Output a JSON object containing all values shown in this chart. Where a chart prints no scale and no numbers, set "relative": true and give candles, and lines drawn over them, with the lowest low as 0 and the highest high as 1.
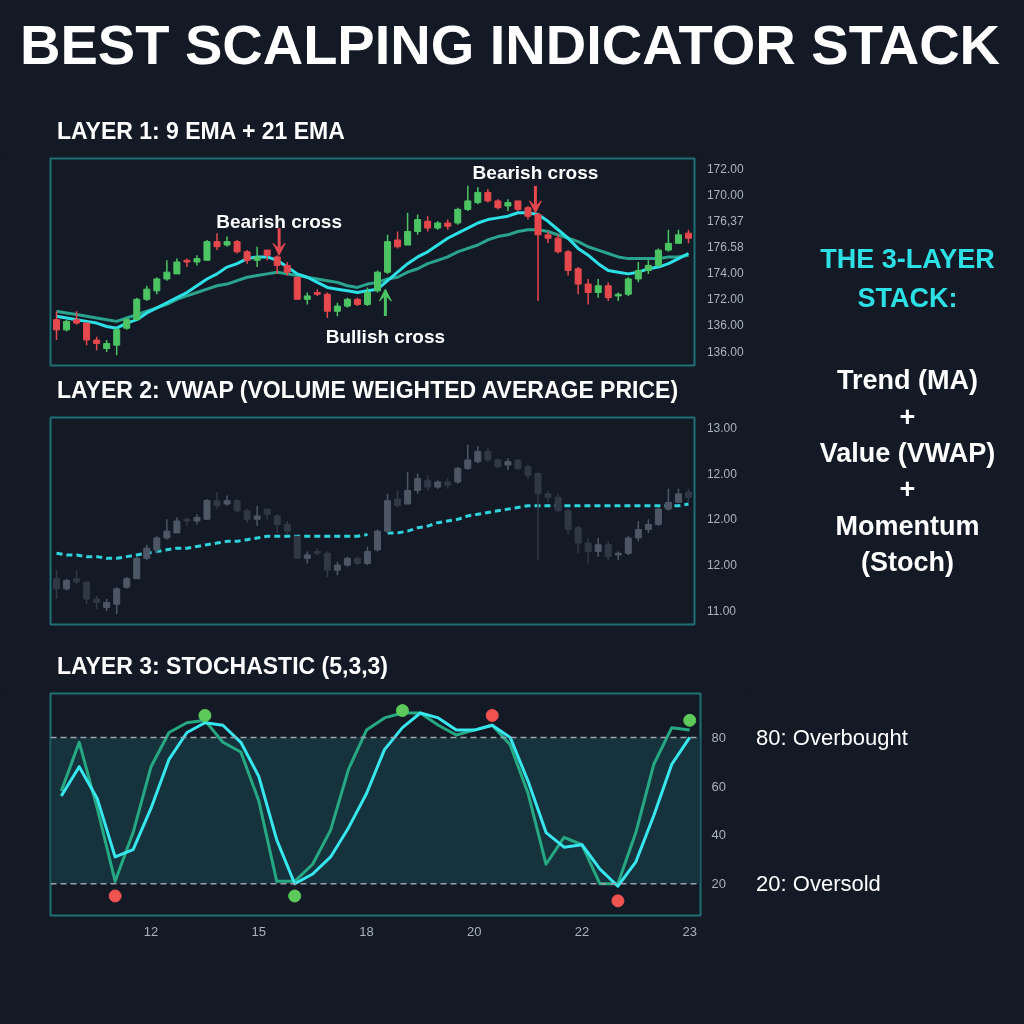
{
  "chart_data": [
    {
      "type": "candlestick",
      "title": "BEST SCALPING INDICATOR STACK",
      "subtitle": "LAYER 1: 9 EMA + 21 EMA",
      "relative": true,
      "categories": [
        null,
        null,
        null,
        null,
        null,
        null,
        null,
        null,
        null,
        null,
        null,
        null,
        null,
        null,
        null,
        null,
        null,
        null,
        null,
        null,
        null,
        null,
        null,
        null,
        null,
        null,
        null,
        null,
        null,
        null,
        null,
        null,
        null,
        null,
        null,
        null,
        null,
        null,
        null,
        null,
        null,
        null,
        null,
        null,
        null,
        null,
        null,
        null,
        null,
        null,
        null,
        null,
        null,
        null,
        null,
        null,
        null,
        null,
        null,
        null,
        null,
        null,
        null,
        null
      ],
      "ohlc": [
        [
          0.21,
          0.26,
          0.09,
          0.15
        ],
        [
          0.15,
          0.21,
          0.14,
          0.2
        ],
        [
          0.21,
          0.26,
          0.18,
          0.19
        ],
        [
          0.19,
          0.19,
          0.06,
          0.09
        ],
        [
          0.09,
          0.11,
          0.03,
          0.07
        ],
        [
          0.04,
          0.09,
          0.02,
          0.07
        ],
        [
          0.06,
          0.16,
          0,
          0.15
        ],
        [
          0.16,
          0.22,
          0.15,
          0.21
        ],
        [
          0.21,
          0.34,
          0.21,
          0.33
        ],
        [
          0.33,
          0.41,
          0.32,
          0.39
        ],
        [
          0.38,
          0.46,
          0.36,
          0.45
        ],
        [
          0.45,
          0.56,
          0.44,
          0.49
        ],
        [
          0.48,
          0.57,
          0.48,
          0.55
        ],
        [
          0.56,
          0.57,
          0.52,
          0.55
        ],
        [
          0.55,
          0.59,
          0.53,
          0.57
        ],
        [
          0.56,
          0.68,
          0.56,
          0.67
        ],
        [
          0.67,
          0.72,
          0.62,
          0.64
        ],
        [
          0.65,
          0.7,
          0.64,
          0.67
        ],
        [
          0.67,
          0.68,
          0.6,
          0.61
        ],
        [
          0.61,
          0.62,
          0.54,
          0.56
        ],
        [
          0.56,
          0.64,
          0.52,
          0.58
        ],
        [
          0.62,
          0.62,
          0.56,
          0.59
        ],
        [
          0.58,
          0.59,
          0.48,
          0.53
        ],
        [
          0.53,
          0.55,
          0.47,
          0.49
        ],
        [
          0.46,
          0.46,
          0.33,
          0.33
        ],
        [
          0.33,
          0.37,
          0.3,
          0.35
        ],
        [
          0.37,
          0.39,
          0.35,
          0.36
        ],
        [
          0.36,
          0.37,
          0.22,
          0.26
        ],
        [
          0.26,
          0.31,
          0.23,
          0.29
        ],
        [
          0.29,
          0.34,
          0.28,
          0.33
        ],
        [
          0.33,
          0.34,
          0.29,
          0.3
        ],
        [
          0.3,
          0.4,
          0.29,
          0.37
        ],
        [
          0.38,
          0.5,
          0.37,
          0.49
        ],
        [
          0.49,
          0.71,
          0.48,
          0.67
        ],
        [
          0.68,
          0.73,
          0.63,
          0.64
        ],
        [
          0.65,
          0.84,
          0.65,
          0.73
        ],
        [
          0.73,
          0.83,
          0.71,
          0.8
        ],
        [
          0.79,
          0.82,
          0.73,
          0.75
        ],
        [
          0.75,
          0.79,
          0.74,
          0.78
        ],
        [
          0.78,
          0.8,
          0.74,
          0.76
        ],
        [
          0.78,
          0.87,
          0.77,
          0.86
        ],
        [
          0.86,
          1,
          0.85,
          0.91
        ],
        [
          0.9,
          0.99,
          0.89,
          0.96
        ],
        [
          0.96,
          0.98,
          0.9,
          0.91
        ],
        [
          0.91,
          0.92,
          0.86,
          0.87
        ],
        [
          0.88,
          0.92,
          0.85,
          0.9
        ],
        [
          0.91,
          0.91,
          0.85,
          0.86
        ],
        [
          0.87,
          0.88,
          0.8,
          0.82
        ],
        [
          0.83,
          0.84,
          0.32,
          0.71
        ],
        [
          0.71,
          0.73,
          0.66,
          0.69
        ],
        [
          0.69,
          0.71,
          0.6,
          0.61
        ],
        [
          0.61,
          0.62,
          0.47,
          0.5
        ],
        [
          0.51,
          0.52,
          0.36,
          0.42
        ],
        [
          0.42,
          0.45,
          0.3,
          0.37
        ],
        [
          0.37,
          0.45,
          0.34,
          0.41
        ],
        [
          0.41,
          0.43,
          0.32,
          0.34
        ],
        [
          0.35,
          0.37,
          0.32,
          0.36
        ],
        [
          0.36,
          0.46,
          0.35,
          0.45
        ],
        [
          0.45,
          0.55,
          0.43,
          0.5
        ],
        [
          0.5,
          0.56,
          0.48,
          0.53
        ],
        [
          0.53,
          0.63,
          0.52,
          0.62
        ],
        [
          0.62,
          0.74,
          0.61,
          0.66
        ],
        [
          0.66,
          0.74,
          0.66,
          0.71
        ],
        [
          0.72,
          0.74,
          0.66,
          0.69
        ]
      ],
      "colors": [
        "#e5484d",
        "#4cc463",
        "#e5484d",
        "#e5484d",
        "#e5484d",
        "#4cc463",
        "#4cc463",
        "#4cc463",
        "#4cc463",
        "#4cc463",
        "#4cc463",
        "#4cc463",
        "#4cc463",
        "#e5484d",
        "#4cc463",
        "#4cc463",
        "#e5484d",
        "#4cc463",
        "#e5484d",
        "#e5484d",
        "#4cc463",
        "#e5484d",
        "#e5484d",
        "#e5484d",
        "#e5484d",
        "#4cc463",
        "#e5484d",
        "#e5484d",
        "#4cc463",
        "#4cc463",
        "#e5484d",
        "#4cc463",
        "#4cc463",
        "#4cc463",
        "#e5484d",
        "#4cc463",
        "#4cc463",
        "#e5484d",
        "#4cc463",
        "#e5484d",
        "#4cc463",
        "#4cc463",
        "#4cc463",
        "#e5484d",
        "#e5484d",
        "#4cc463",
        "#e5484d",
        "#e5484d",
        "#e5484d",
        "#e5484d",
        "#e5484d",
        "#e5484d",
        "#e5484d",
        "#e5484d",
        "#4cc463",
        "#e5484d",
        "#4cc463",
        "#4cc463",
        "#4cc463",
        "#4cc463",
        "#4cc463",
        "#4cc463",
        "#4cc463",
        "#e5484d"
      ],
      "series": [
        {
          "type": "line",
          "color": "#2aa38f",
          "values": [
            0.26,
            0.25,
            0.24,
            0.23,
            0.22,
            0.21,
            0.2,
            0.22,
            0.24,
            0.26,
            0.28,
            0.3,
            0.33,
            0.35,
            0.37,
            0.39,
            0.41,
            0.42,
            0.44,
            0.46,
            0.47,
            0.48,
            0.49,
            0.48,
            0.47,
            0.46,
            0.45,
            0.44,
            0.43,
            0.41,
            0.4,
            0.42,
            0.43,
            0.45,
            0.46,
            0.49,
            0.51,
            0.54,
            0.56,
            0.58,
            0.61,
            0.63,
            0.65,
            0.68,
            0.7,
            0.71,
            0.73,
            0.74,
            0.74,
            0.73,
            0.71,
            0.69,
            0.67,
            0.64,
            0.62,
            0.6,
            0.58,
            0.57,
            0.57,
            0.57,
            0.57,
            0.58,
            0.58,
            0.59
          ]
        },
        {
          "type": "line",
          "color": "#2de0e6",
          "values": [
            0.23,
            0.22,
            0.21,
            0.2,
            0.19,
            0.17,
            0.16,
            0.19,
            0.21,
            0.25,
            0.28,
            0.31,
            0.34,
            0.37,
            0.41,
            0.45,
            0.48,
            0.52,
            0.54,
            0.57,
            0.58,
            0.58,
            0.56,
            0.52,
            0.48,
            0.46,
            0.43,
            0.4,
            0.39,
            0.38,
            0.37,
            0.38,
            0.39,
            0.44,
            0.49,
            0.54,
            0.58,
            0.61,
            0.65,
            0.69,
            0.72,
            0.75,
            0.78,
            0.8,
            0.81,
            0.82,
            0.84,
            0.84,
            0.83,
            0.79,
            0.74,
            0.69,
            0.63,
            0.59,
            0.54,
            0.5,
            0.49,
            0.48,
            0.49,
            0.51,
            0.52,
            0.54,
            0.57,
            0.6
          ]
        }
      ],
      "annotations": [
        {
          "text": "Bearish cross",
          "y": 0.59
        },
        {
          "text": "Bullish cross",
          "y": 0.39
        },
        {
          "text": "Bearish cross",
          "y": 0.84
        },
        "172.00",
        "170.00",
        "176,37",
        "176.58",
        "174.00",
        "172.00",
        "136.00",
        "136.00"
      ]
    },
    {
      "type": "candlestick",
      "title": "LAYER 2: VWAP (VOLUME WEIGHTED AVERAGE PRICE)",
      "relative": true,
      "colors": [
        "#303845",
        "#4d5766",
        "#303845",
        "#303845",
        "#303845",
        "#4d5766",
        "#4d5766",
        "#4d5766",
        "#4d5766",
        "#4d5766",
        "#4d5766",
        "#4d5766",
        "#4d5766",
        "#303845",
        "#4d5766",
        "#4d5766",
        "#303845",
        "#4d5766",
        "#303845",
        "#303845",
        "#4d5766",
        "#303845",
        "#303845",
        "#303845",
        "#303845",
        "#4d5766",
        "#303845",
        "#303845",
        "#4d5766",
        "#4d5766",
        "#303845",
        "#4d5766",
        "#4d5766",
        "#4d5766",
        "#303845",
        "#4d5766",
        "#4d5766",
        "#303845",
        "#4d5766",
        "#303845",
        "#4d5766",
        "#4d5766",
        "#4d5766",
        "#303845",
        "#303845",
        "#4d5766",
        "#303845",
        "#303845",
        "#303845",
        "#303845",
        "#303845",
        "#303845",
        "#303845",
        "#303845",
        "#4d5766",
        "#303845",
        "#4d5766",
        "#4d5766",
        "#4d5766",
        "#4d5766",
        "#4d5766",
        "#4d5766",
        "#4d5766",
        "#303845"
      ],
      "categories": [
        null,
        null,
        null,
        null,
        null,
        null,
        null,
        null,
        null,
        null,
        null,
        null,
        null,
        null,
        null,
        null,
        null,
        null,
        null,
        null,
        null,
        null,
        null,
        null,
        null,
        null,
        null,
        null,
        null,
        null,
        null,
        null,
        null,
        null,
        null,
        null,
        null,
        null,
        null,
        null,
        null,
        null,
        null,
        null,
        null,
        null,
        null,
        null,
        null,
        null,
        null,
        null,
        null,
        null,
        null,
        null,
        null,
        null,
        null,
        null,
        null,
        null,
        null,
        null
      ],
      "ohlc": [
        [
          0.21,
          0.26,
          0.09,
          0.15
        ],
        [
          0.15,
          0.21,
          0.14,
          0.2
        ],
        [
          0.21,
          0.26,
          0.18,
          0.19
        ],
        [
          0.19,
          0.19,
          0.06,
          0.09
        ],
        [
          0.09,
          0.11,
          0.03,
          0.07
        ],
        [
          0.04,
          0.09,
          0.02,
          0.07
        ],
        [
          0.06,
          0.16,
          0,
          0.15
        ],
        [
          0.16,
          0.22,
          0.15,
          0.21
        ],
        [
          0.21,
          0.34,
          0.21,
          0.33
        ],
        [
          0.33,
          0.41,
          0.32,
          0.39
        ],
        [
          0.38,
          0.46,
          0.36,
          0.45
        ],
        [
          0.45,
          0.56,
          0.44,
          0.49
        ],
        [
          0.48,
          0.57,
          0.48,
          0.55
        ],
        [
          0.56,
          0.57,
          0.52,
          0.55
        ],
        [
          0.55,
          0.59,
          0.53,
          0.57
        ],
        [
          0.56,
          0.68,
          0.56,
          0.67
        ],
        [
          0.67,
          0.72,
          0.62,
          0.64
        ],
        [
          0.65,
          0.7,
          0.64,
          0.67
        ],
        [
          0.67,
          0.68,
          0.6,
          0.61
        ],
        [
          0.61,
          0.62,
          0.54,
          0.56
        ],
        [
          0.56,
          0.64,
          0.52,
          0.58
        ],
        [
          0.62,
          0.62,
          0.56,
          0.59
        ],
        [
          0.58,
          0.59,
          0.48,
          0.53
        ],
        [
          0.53,
          0.55,
          0.47,
          0.49
        ],
        [
          0.46,
          0.46,
          0.33,
          0.33
        ],
        [
          0.33,
          0.37,
          0.3,
          0.35
        ],
        [
          0.37,
          0.39,
          0.35,
          0.36
        ],
        [
          0.36,
          0.37,
          0.22,
          0.26
        ],
        [
          0.26,
          0.31,
          0.23,
          0.29
        ],
        [
          0.29,
          0.34,
          0.28,
          0.33
        ],
        [
          0.33,
          0.34,
          0.29,
          0.3
        ],
        [
          0.3,
          0.4,
          0.29,
          0.37
        ],
        [
          0.38,
          0.5,
          0.37,
          0.49
        ],
        [
          0.49,
          0.71,
          0.48,
          0.67
        ],
        [
          0.68,
          0.73,
          0.63,
          0.64
        ],
        [
          0.65,
          0.84,
          0.65,
          0.73
        ],
        [
          0.73,
          0.83,
          0.71,
          0.8
        ],
        [
          0.79,
          0.82,
          0.73,
          0.75
        ],
        [
          0.75,
          0.79,
          0.74,
          0.78
        ],
        [
          0.78,
          0.8,
          0.74,
          0.76
        ],
        [
          0.78,
          0.87,
          0.77,
          0.86
        ],
        [
          0.86,
          1,
          0.85,
          0.91
        ],
        [
          0.9,
          0.99,
          0.89,
          0.96
        ],
        [
          0.96,
          0.98,
          0.9,
          0.91
        ],
        [
          0.91,
          0.92,
          0.86,
          0.87
        ],
        [
          0.88,
          0.92,
          0.85,
          0.9
        ],
        [
          0.91,
          0.91,
          0.85,
          0.86
        ],
        [
          0.87,
          0.88,
          0.8,
          0.82
        ],
        [
          0.83,
          0.84,
          0.32,
          0.71
        ],
        [
          0.71,
          0.73,
          0.66,
          0.69
        ],
        [
          0.69,
          0.71,
          0.6,
          0.61
        ],
        [
          0.61,
          0.62,
          0.47,
          0.5
        ],
        [
          0.51,
          0.52,
          0.36,
          0.42
        ],
        [
          0.42,
          0.45,
          0.3,
          0.37
        ],
        [
          0.37,
          0.45,
          0.34,
          0.41
        ],
        [
          0.41,
          0.43,
          0.32,
          0.34
        ],
        [
          0.35,
          0.37,
          0.32,
          0.36
        ],
        [
          0.36,
          0.46,
          0.35,
          0.45
        ],
        [
          0.45,
          0.55,
          0.43,
          0.5
        ],
        [
          0.5,
          0.56,
          0.48,
          0.53
        ],
        [
          0.53,
          0.63,
          0.52,
          0.62
        ],
        [
          0.62,
          0.74,
          0.61,
          0.66
        ],
        [
          0.66,
          0.74,
          0.66,
          0.71
        ],
        [
          0.72,
          0.74,
          0.66,
          0.69
        ]
      ],
      "series": [
        {
          "type": "line",
          "color": "#2fd3dc",
          "line_style": "dashed",
          "values": [
            0.36,
            0.35,
            0.35,
            0.34,
            0.34,
            0.33,
            0.33,
            0.34,
            0.35,
            0.36,
            0.37,
            0.38,
            0.39,
            0.39,
            0.4,
            0.41,
            0.42,
            0.43,
            0.43,
            0.44,
            0.45,
            0.46,
            0.46,
            0.46,
            0.46,
            0.46,
            0.46,
            0.46,
            0.46,
            0.46,
            0.46,
            0.47,
            null,
            0.48,
            0.48,
            0.49,
            0.51,
            0.52,
            0.54,
            0.55,
            0.56,
            0.58,
            0.59,
            0.6,
            0.61,
            0.62,
            0.63,
            0.64,
            0.64,
            0.64,
            0.64,
            0.64,
            0.64,
            0.64,
            0.64,
            0.64,
            0.64,
            0.64,
            0.64,
            0.64,
            0.64,
            0.64,
            0.64,
            0.65
          ]
        }
      ],
      "annotations": [
        "13.00",
        "12.00",
        "12.00",
        "12.00",
        "11.00"
      ]
    },
    {
      "type": "line",
      "title": "LAYER 3: STOCHASTIC (5,3,3)",
      "categories": [
        null,
        null,
        null,
        null,
        null,
        "12",
        null,
        null,
        null,
        null,
        null,
        "15",
        null,
        null,
        null,
        null,
        null,
        "18",
        null,
        null,
        null,
        null,
        null,
        "20",
        null,
        null,
        null,
        null,
        null,
        "22",
        null,
        null,
        null,
        null,
        null,
        "23"
      ],
      "ylim": [
        7,
        98
      ],
      "yticks": [
        20,
        40,
        60,
        80
      ],
      "series": [
        {
          "type": "line",
          "color": "#26a882",
          "values": [
            58,
            78,
            51,
            21,
            41,
            68,
            82,
            86,
            87,
            78,
            74,
            54,
            21,
            21,
            28,
            42,
            67,
            83,
            88,
            90,
            90,
            85,
            81,
            83,
            85,
            77,
            57,
            28,
            39,
            36,
            20,
            20,
            41,
            69,
            84,
            83
          ]
        },
        {
          "type": "line",
          "color": "#38e6ee",
          "values": [
            56,
            68,
            55,
            31,
            34,
            51,
            71,
            82,
            86,
            85,
            78,
            64,
            38,
            20,
            24,
            31,
            43,
            57,
            75,
            84,
            90,
            88,
            83,
            83,
            85,
            80,
            62,
            41,
            35,
            36,
            26,
            19,
            29,
            48,
            69,
            80
          ]
        },
        {
          "type": "scatter",
          "color": "#5cc95a",
          "marker": "circle",
          "values": [
            null,
            null,
            null,
            null,
            null,
            null,
            null,
            null,
            89,
            null,
            null,
            null,
            null,
            15,
            null,
            null,
            null,
            null,
            null,
            91,
            null,
            null,
            null,
            null,
            null,
            null,
            null,
            null,
            null,
            null,
            null,
            null,
            null,
            null,
            null,
            87
          ]
        },
        {
          "type": "scatter",
          "color": "#ef5350",
          "marker": "circle",
          "values": [
            null,
            null,
            null,
            15,
            null,
            null,
            null,
            null,
            null,
            null,
            null,
            null,
            null,
            null,
            null,
            null,
            null,
            null,
            null,
            null,
            null,
            null,
            null,
            null,
            89,
            null,
            null,
            null,
            null,
            null,
            null,
            13,
            null,
            null,
            null,
            null
          ]
        }
      ],
      "bands": [
        {
          "axis": "y",
          "from": 20,
          "to": 80,
          "color": "#173640"
        }
      ],
      "ref_lines": [
        {
          "axis": "y",
          "value": 80,
          "label": "80: Overbought",
          "color": "#9aa3ad",
          "line_style": "dashed"
        },
        {
          "axis": "y",
          "value": 20,
          "label": "20: Oversold",
          "color": "#9aa3ad",
          "line_style": "dashed"
        }
      ]
    },
    {
      "type": "other",
      "title": "THE 3-LAYER STACK:",
      "annotations": [
        "Trend (MA)",
        "+",
        "Value (VWAP)",
        "+",
        "Momentum (Stoch)"
      ]
    }
  ]
}
